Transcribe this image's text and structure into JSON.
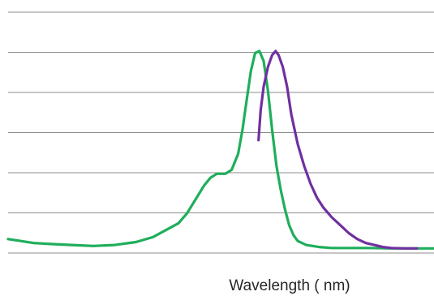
{
  "chart_data": {
    "type": "line",
    "title": "",
    "xlabel": "Wavelength ( nm)",
    "ylabel": "",
    "grid": true,
    "grid_lines": 7,
    "xlim": [
      0,
      100
    ],
    "ylim": [
      0,
      100
    ],
    "series": [
      {
        "color": "#1fae5b",
        "points": [
          [
            0,
            5
          ],
          [
            3,
            4
          ],
          [
            6,
            3
          ],
          [
            10,
            2.5
          ],
          [
            15,
            2
          ],
          [
            20,
            1.5
          ],
          [
            25,
            2
          ],
          [
            30,
            3.5
          ],
          [
            34,
            6
          ],
          [
            37,
            9.5
          ],
          [
            40,
            13
          ],
          [
            42,
            18
          ],
          [
            44,
            25
          ],
          [
            46,
            32
          ],
          [
            47.5,
            36
          ],
          [
            49,
            38
          ],
          [
            51,
            38
          ],
          [
            52.5,
            40
          ],
          [
            54,
            48
          ],
          [
            55,
            60
          ],
          [
            56,
            75
          ],
          [
            57,
            90
          ],
          [
            58,
            99
          ],
          [
            59,
            100
          ],
          [
            60,
            95
          ],
          [
            61,
            80
          ],
          [
            62,
            60
          ],
          [
            63,
            42
          ],
          [
            64,
            30
          ],
          [
            65,
            20
          ],
          [
            66,
            12
          ],
          [
            67,
            7
          ],
          [
            68,
            4
          ],
          [
            70,
            2
          ],
          [
            73,
            1
          ],
          [
            76,
            0.5
          ],
          [
            80,
            0.5
          ],
          [
            85,
            0.5
          ],
          [
            90,
            0.3
          ],
          [
            95,
            0.3
          ],
          [
            100,
            0.3
          ]
        ]
      },
      {
        "color": "#7030a0",
        "points": [
          [
            58.8,
            55
          ],
          [
            59.3,
            70
          ],
          [
            60,
            82
          ],
          [
            61,
            92
          ],
          [
            62,
            98
          ],
          [
            62.8,
            100
          ],
          [
            63.5,
            98
          ],
          [
            64.5,
            92
          ],
          [
            65.5,
            82
          ],
          [
            66.5,
            68
          ],
          [
            68,
            53
          ],
          [
            69.5,
            42
          ],
          [
            71,
            33
          ],
          [
            72.5,
            26
          ],
          [
            74,
            21
          ],
          [
            76,
            16
          ],
          [
            78,
            12
          ],
          [
            80,
            8
          ],
          [
            82,
            5
          ],
          [
            84,
            3
          ],
          [
            86,
            2
          ],
          [
            88,
            1
          ],
          [
            90,
            0.5
          ],
          [
            93,
            0.3
          ],
          [
            96,
            0.3
          ]
        ]
      }
    ]
  }
}
